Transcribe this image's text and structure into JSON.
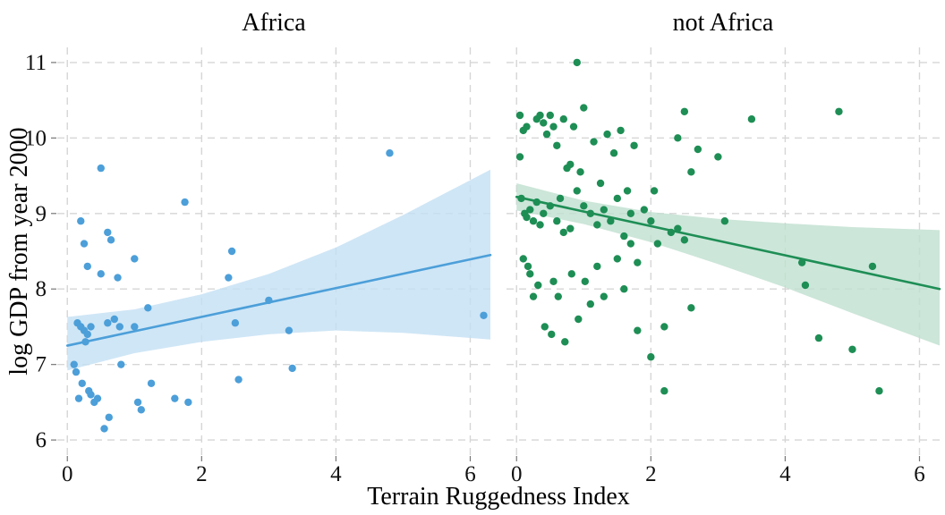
{
  "chart_data": {
    "type": "scatter",
    "title": "",
    "xlabel": "Terrain Ruggedness Index",
    "ylabel": "log GDP from year 2000",
    "x_ticks": [
      "0",
      "2",
      "4",
      "6"
    ],
    "y_ticks": [
      "6",
      "7",
      "8",
      "9",
      "10",
      "11"
    ],
    "x_tick_values": [
      0,
      2,
      4,
      6
    ],
    "y_tick_values": [
      6,
      7,
      8,
      9,
      10,
      11
    ],
    "x_domain": [
      -0.15,
      6.3
    ],
    "y_domain": [
      5.8,
      11.2
    ],
    "grid": {
      "style": "dashed",
      "color": "#d6d6d6"
    },
    "legend": "none",
    "panels": [
      {
        "title": "Africa",
        "color": "#4C9FD9",
        "band_color": "#C3E0F4",
        "line": {
          "x1": 0,
          "y1": 7.25,
          "x2": 6.3,
          "y2": 8.45
        },
        "band": {
          "x": [
            0,
            1,
            2,
            3,
            4,
            5,
            6.3
          ],
          "upper": [
            7.63,
            7.73,
            7.93,
            8.2,
            8.55,
            8.98,
            9.58
          ],
          "lower": [
            6.92,
            7.15,
            7.3,
            7.4,
            7.45,
            7.42,
            7.33
          ]
        },
        "points": [
          [
            0.1,
            7.0
          ],
          [
            0.13,
            6.9
          ],
          [
            0.15,
            7.55
          ],
          [
            0.17,
            6.55
          ],
          [
            0.2,
            8.9
          ],
          [
            0.2,
            7.5
          ],
          [
            0.22,
            6.75
          ],
          [
            0.25,
            8.6
          ],
          [
            0.25,
            7.45
          ],
          [
            0.27,
            7.3
          ],
          [
            0.3,
            8.3
          ],
          [
            0.3,
            7.4
          ],
          [
            0.32,
            6.65
          ],
          [
            0.35,
            7.5
          ],
          [
            0.35,
            6.6
          ],
          [
            0.4,
            6.5
          ],
          [
            0.45,
            6.55
          ],
          [
            0.5,
            9.6
          ],
          [
            0.5,
            8.2
          ],
          [
            0.55,
            6.15
          ],
          [
            0.6,
            8.75
          ],
          [
            0.6,
            7.55
          ],
          [
            0.62,
            6.3
          ],
          [
            0.65,
            8.65
          ],
          [
            0.7,
            7.6
          ],
          [
            0.75,
            8.15
          ],
          [
            0.78,
            7.5
          ],
          [
            0.8,
            7.0
          ],
          [
            1.0,
            8.4
          ],
          [
            1.0,
            7.5
          ],
          [
            1.05,
            6.5
          ],
          [
            1.1,
            6.4
          ],
          [
            1.2,
            7.75
          ],
          [
            1.25,
            6.75
          ],
          [
            1.6,
            6.55
          ],
          [
            1.75,
            9.15
          ],
          [
            1.8,
            6.5
          ],
          [
            2.4,
            8.15
          ],
          [
            2.45,
            8.5
          ],
          [
            2.5,
            7.55
          ],
          [
            2.55,
            6.8
          ],
          [
            3.0,
            7.85
          ],
          [
            3.3,
            7.45
          ],
          [
            3.35,
            6.95
          ],
          [
            4.8,
            9.8
          ],
          [
            6.2,
            7.65
          ]
        ]
      },
      {
        "title": "not Africa",
        "color": "#1E8E55",
        "band_color": "#BFE0CF",
        "line": {
          "x1": 0,
          "y1": 9.22,
          "x2": 6.3,
          "y2": 8.0
        },
        "band": {
          "x": [
            0,
            1,
            2,
            3,
            4,
            5,
            6.3
          ],
          "upper": [
            9.4,
            9.17,
            9.02,
            8.93,
            8.87,
            8.82,
            8.78
          ],
          "lower": [
            9.04,
            8.86,
            8.62,
            8.33,
            8.02,
            7.68,
            7.25
          ]
        },
        "points": [
          [
            0.05,
            10.3
          ],
          [
            0.05,
            9.75
          ],
          [
            0.07,
            9.2
          ],
          [
            0.1,
            10.1
          ],
          [
            0.1,
            8.4
          ],
          [
            0.12,
            9.0
          ],
          [
            0.15,
            10.15
          ],
          [
            0.15,
            8.95
          ],
          [
            0.17,
            8.3
          ],
          [
            0.2,
            9.05
          ],
          [
            0.2,
            8.2
          ],
          [
            0.25,
            8.9
          ],
          [
            0.25,
            7.9
          ],
          [
            0.3,
            10.25
          ],
          [
            0.3,
            9.15
          ],
          [
            0.32,
            8.05
          ],
          [
            0.35,
            10.3
          ],
          [
            0.35,
            8.85
          ],
          [
            0.4,
            10.2
          ],
          [
            0.4,
            9.0
          ],
          [
            0.42,
            7.5
          ],
          [
            0.45,
            10.05
          ],
          [
            0.5,
            10.3
          ],
          [
            0.5,
            9.1
          ],
          [
            0.52,
            7.4
          ],
          [
            0.55,
            10.15
          ],
          [
            0.55,
            8.1
          ],
          [
            0.6,
            9.9
          ],
          [
            0.6,
            8.9
          ],
          [
            0.62,
            7.9
          ],
          [
            0.65,
            9.2
          ],
          [
            0.7,
            10.25
          ],
          [
            0.7,
            8.75
          ],
          [
            0.72,
            7.3
          ],
          [
            0.75,
            9.6
          ],
          [
            0.8,
            9.65
          ],
          [
            0.8,
            8.8
          ],
          [
            0.82,
            8.2
          ],
          [
            0.85,
            10.15
          ],
          [
            0.9,
            11.0
          ],
          [
            0.9,
            9.3
          ],
          [
            0.92,
            7.6
          ],
          [
            0.95,
            9.55
          ],
          [
            1.0,
            10.4
          ],
          [
            1.0,
            9.1
          ],
          [
            1.02,
            8.1
          ],
          [
            1.1,
            9.0
          ],
          [
            1.1,
            7.8
          ],
          [
            1.15,
            9.95
          ],
          [
            1.2,
            8.85
          ],
          [
            1.2,
            8.3
          ],
          [
            1.25,
            9.4
          ],
          [
            1.3,
            9.05
          ],
          [
            1.3,
            7.9
          ],
          [
            1.35,
            10.05
          ],
          [
            1.4,
            8.9
          ],
          [
            1.45,
            9.8
          ],
          [
            1.5,
            9.2
          ],
          [
            1.5,
            8.4
          ],
          [
            1.55,
            10.1
          ],
          [
            1.6,
            8.7
          ],
          [
            1.6,
            8.0
          ],
          [
            1.65,
            9.3
          ],
          [
            1.7,
            9.0
          ],
          [
            1.7,
            8.6
          ],
          [
            1.75,
            9.9
          ],
          [
            1.8,
            8.35
          ],
          [
            1.8,
            7.45
          ],
          [
            1.9,
            9.05
          ],
          [
            2.0,
            8.9
          ],
          [
            2.0,
            7.1
          ],
          [
            2.05,
            9.3
          ],
          [
            2.1,
            8.6
          ],
          [
            2.2,
            7.5
          ],
          [
            2.2,
            6.65
          ],
          [
            2.3,
            8.75
          ],
          [
            2.4,
            10.0
          ],
          [
            2.4,
            8.8
          ],
          [
            2.5,
            10.35
          ],
          [
            2.5,
            8.65
          ],
          [
            2.6,
            9.55
          ],
          [
            2.6,
            7.75
          ],
          [
            2.7,
            9.85
          ],
          [
            3.0,
            9.75
          ],
          [
            3.1,
            8.9
          ],
          [
            3.5,
            10.25
          ],
          [
            4.25,
            8.35
          ],
          [
            4.3,
            8.05
          ],
          [
            4.5,
            7.35
          ],
          [
            4.8,
            10.35
          ],
          [
            5.0,
            7.2
          ],
          [
            5.3,
            8.3
          ],
          [
            5.4,
            6.65
          ]
        ]
      }
    ]
  }
}
